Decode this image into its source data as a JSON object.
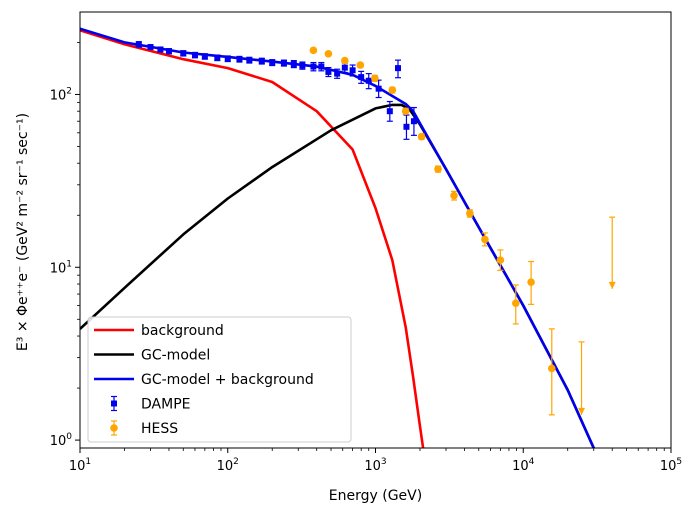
{
  "chart_data": {
    "type": "line",
    "xscale": "log",
    "yscale": "log",
    "xlim": [
      10,
      100000
    ],
    "ylim": [
      0.9,
      300
    ],
    "xlabel": "Energy (GeV)",
    "ylabel": "E³ × Φe⁺⁺e⁻ (GeV² m⁻² sr⁻¹ sec⁻¹)",
    "x_ticks": [
      {
        "value": 10,
        "base": "10",
        "exp": "1"
      },
      {
        "value": 100,
        "base": "10",
        "exp": "2"
      },
      {
        "value": 1000,
        "base": "10",
        "exp": "3"
      },
      {
        "value": 10000,
        "base": "10",
        "exp": "4"
      },
      {
        "value": 100000,
        "base": "10",
        "exp": "5"
      }
    ],
    "y_ticks": [
      {
        "value": 1,
        "base": "10",
        "exp": "0"
      },
      {
        "value": 10,
        "base": "10",
        "exp": "1"
      },
      {
        "value": 100,
        "base": "10",
        "exp": "2"
      }
    ],
    "legend_position": "lower-left",
    "series": [
      {
        "name": "background",
        "kind": "line",
        "color": "#ff0000",
        "x": [
          10,
          20,
          50,
          100,
          200,
          400,
          700,
          1000,
          1300,
          1600,
          1800,
          2000,
          2100
        ],
        "y": [
          235,
          195,
          160,
          142,
          118,
          80,
          48,
          22,
          11,
          4.5,
          2.3,
          1.2,
          0.9
        ]
      },
      {
        "name": "GC-model",
        "kind": "line",
        "color": "#000000",
        "x": [
          10,
          20,
          50,
          100,
          200,
          500,
          1000,
          1300,
          1500,
          1700,
          2000,
          3000,
          5000,
          10000,
          20000,
          30000
        ],
        "y": [
          4.4,
          7.6,
          15.5,
          25,
          38,
          62,
          83,
          87,
          87,
          82,
          67,
          37,
          17,
          6.0,
          1.95,
          0.9
        ]
      },
      {
        "name": "GC-model + background",
        "kind": "line",
        "color": "#0000ee",
        "x": [
          10,
          20,
          50,
          100,
          200,
          400,
          700,
          1000,
          1300,
          1600,
          1800,
          2000,
          3000,
          5000,
          10000,
          20000,
          30000
        ],
        "y": [
          240,
          200,
          175,
          165,
          155,
          145,
          130,
          112,
          98,
          88,
          80,
          68,
          37,
          17,
          6.0,
          1.95,
          0.9
        ]
      },
      {
        "name": "DAMPE",
        "kind": "errorbar",
        "color": "#0000ee",
        "marker": "square",
        "points": [
          {
            "x": 25,
            "y": 195,
            "lo": 188,
            "hi": 202
          },
          {
            "x": 30,
            "y": 188,
            "lo": 182,
            "hi": 194
          },
          {
            "x": 35,
            "y": 182,
            "lo": 176,
            "hi": 188
          },
          {
            "x": 40,
            "y": 178,
            "lo": 172,
            "hi": 184
          },
          {
            "x": 50,
            "y": 173,
            "lo": 167,
            "hi": 179
          },
          {
            "x": 60,
            "y": 169,
            "lo": 163,
            "hi": 175
          },
          {
            "x": 70,
            "y": 166,
            "lo": 160,
            "hi": 172
          },
          {
            "x": 85,
            "y": 163,
            "lo": 157,
            "hi": 169
          },
          {
            "x": 100,
            "y": 161,
            "lo": 155,
            "hi": 167
          },
          {
            "x": 120,
            "y": 160,
            "lo": 154,
            "hi": 166
          },
          {
            "x": 140,
            "y": 158,
            "lo": 152,
            "hi": 164
          },
          {
            "x": 170,
            "y": 156,
            "lo": 150,
            "hi": 162
          },
          {
            "x": 200,
            "y": 153,
            "lo": 147,
            "hi": 159
          },
          {
            "x": 240,
            "y": 152,
            "lo": 146,
            "hi": 158
          },
          {
            "x": 280,
            "y": 150,
            "lo": 143,
            "hi": 157
          },
          {
            "x": 320,
            "y": 147,
            "lo": 140,
            "hi": 154
          },
          {
            "x": 380,
            "y": 145,
            "lo": 137,
            "hi": 153
          },
          {
            "x": 430,
            "y": 145,
            "lo": 137,
            "hi": 153
          },
          {
            "x": 480,
            "y": 135,
            "lo": 127,
            "hi": 143
          },
          {
            "x": 550,
            "y": 132,
            "lo": 124,
            "hi": 140
          },
          {
            "x": 620,
            "y": 143,
            "lo": 134,
            "hi": 152
          },
          {
            "x": 700,
            "y": 138,
            "lo": 128,
            "hi": 148
          },
          {
            "x": 800,
            "y": 126,
            "lo": 116,
            "hi": 136
          },
          {
            "x": 900,
            "y": 120,
            "lo": 108,
            "hi": 132
          },
          {
            "x": 1050,
            "y": 108,
            "lo": 96,
            "hi": 121
          },
          {
            "x": 1250,
            "y": 80,
            "lo": 70,
            "hi": 91
          },
          {
            "x": 1420,
            "y": 142,
            "lo": 125,
            "hi": 158
          },
          {
            "x": 1620,
            "y": 65,
            "lo": 55,
            "hi": 76
          },
          {
            "x": 1820,
            "y": 70,
            "lo": 58,
            "hi": 84
          }
        ]
      },
      {
        "name": "HESS",
        "kind": "errorbar",
        "color": "#ffa500",
        "marker": "circle",
        "points": [
          {
            "x": 380,
            "y": 180,
            "lo": 176,
            "hi": 184
          },
          {
            "x": 480,
            "y": 172,
            "lo": 168,
            "hi": 176
          },
          {
            "x": 620,
            "y": 157,
            "lo": 153,
            "hi": 161
          },
          {
            "x": 790,
            "y": 148,
            "lo": 144,
            "hi": 152
          },
          {
            "x": 990,
            "y": 124,
            "lo": 119,
            "hi": 129
          },
          {
            "x": 1300,
            "y": 106,
            "lo": 102,
            "hi": 110
          },
          {
            "x": 1600,
            "y": 80,
            "lo": 77,
            "hi": 83
          },
          {
            "x": 2050,
            "y": 57,
            "lo": 55,
            "hi": 59
          },
          {
            "x": 2650,
            "y": 37,
            "lo": 35.5,
            "hi": 38.5
          },
          {
            "x": 3400,
            "y": 26,
            "lo": 24.5,
            "hi": 27.5
          },
          {
            "x": 4350,
            "y": 20.5,
            "lo": 19.5,
            "hi": 21.5
          },
          {
            "x": 5500,
            "y": 14.5,
            "lo": 13.3,
            "hi": 15.8
          },
          {
            "x": 7000,
            "y": 11.0,
            "lo": 9.6,
            "hi": 12.6
          },
          {
            "x": 8900,
            "y": 6.2,
            "lo": 4.7,
            "hi": 7.9
          },
          {
            "x": 11300,
            "y": 8.2,
            "lo": 6.1,
            "hi": 10.8
          },
          {
            "x": 15600,
            "y": 2.6,
            "lo": 1.4,
            "hi": 4.4
          },
          {
            "x": 24800,
            "y": 1.4,
            "lo": 1.4,
            "hi": 3.7,
            "upper_limit": true
          },
          {
            "x": 40000,
            "y": 7.5,
            "lo": 7.5,
            "hi": 19.5,
            "upper_limit": true
          }
        ]
      }
    ]
  }
}
